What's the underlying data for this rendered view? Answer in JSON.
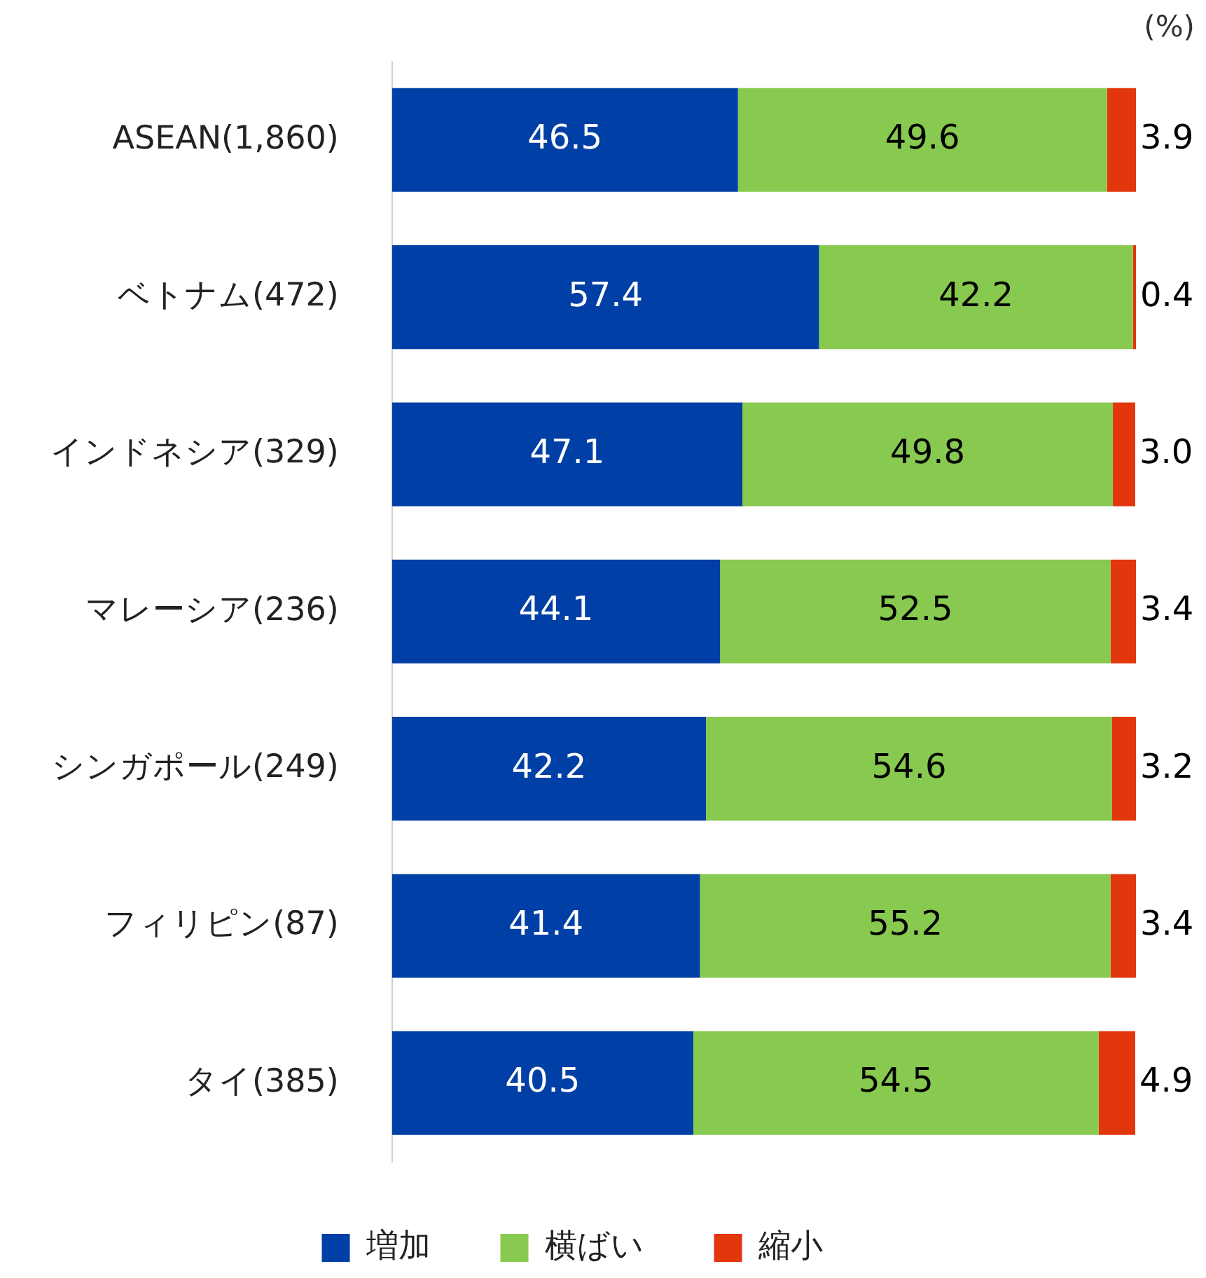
{
  "chart_data": {
    "type": "bar",
    "orientation": "horizontal",
    "stacked": true,
    "legend": "bottom",
    "tick_labels": "y",
    "xlim": [
      0,
      100
    ],
    "categories": [
      "ASEAN(1,860)",
      "ベトナム(472)",
      "インドネシア(329)",
      "マレーシア(236)",
      "シンガポール(249)",
      "フィリピン(87)",
      "タイ(385)"
    ],
    "series": [
      {
        "name": "増加",
        "color": "#003fa5",
        "values": [
          46.5,
          57.4,
          47.1,
          44.1,
          42.2,
          41.4,
          40.5
        ],
        "value_labels": [
          "46.5",
          "57.4",
          "47.1",
          "44.1",
          "42.2",
          "41.4",
          "40.5"
        ]
      },
      {
        "name": "横ばい",
        "color": "#88c94f",
        "values": [
          49.6,
          42.2,
          49.8,
          52.5,
          54.6,
          55.2,
          54.5
        ],
        "value_labels": [
          "49.6",
          "42.2",
          "49.8",
          "52.5",
          "54.6",
          "55.2",
          "54.5"
        ]
      },
      {
        "name": "縮小",
        "color": "#e2360c",
        "values": [
          3.9,
          0.4,
          3.0,
          3.4,
          3.2,
          3.4,
          4.9
        ],
        "value_labels": [
          "3.9",
          "0.4",
          "3.0",
          "3.4",
          "3.2",
          "3.4",
          "4.9"
        ]
      }
    ],
    "annotations": [
      "(%)"
    ]
  }
}
